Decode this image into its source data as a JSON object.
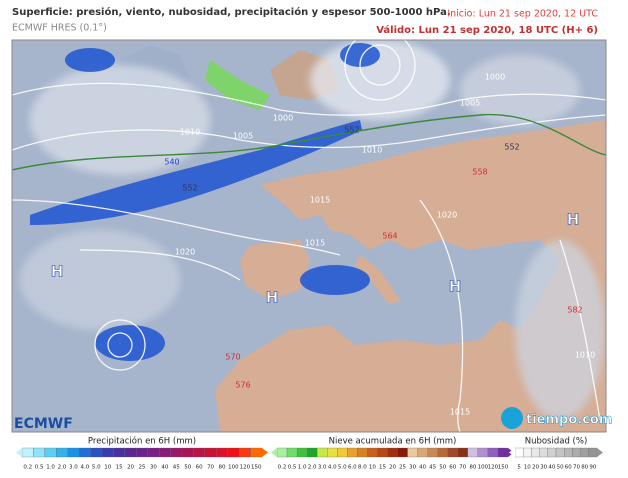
{
  "header": {
    "title": "Superficie: presión, viento, nubosidad, precipitación y espesor 500-1000 hPa.",
    "model": "ECMWF HRES (0.1°)",
    "start": "Inicio: Lun 21 sep 2020, 12 UTC",
    "valid": "Válido: Lun 21 sep 2020, 18 UTC (H+ 6)"
  },
  "map": {
    "labels": [
      "1000",
      "1005",
      "1010",
      "1005",
      "1000",
      "1010",
      "1015",
      "1020",
      "1020",
      "1015",
      "1015",
      "1010",
      "552",
      "552",
      "552",
      "540",
      "564",
      "558",
      "570",
      "576",
      "582",
      "H",
      "H",
      "H",
      "H"
    ]
  },
  "logos": {
    "left": "ECMWF",
    "right": "tiempo.com"
  },
  "legends": [
    {
      "title": "Precipitación en 6H (mm)",
      "ticks": [
        "0.2",
        "0.5",
        "1.0",
        "2.0",
        "3.0",
        "4.0",
        "5.0",
        "10",
        "15",
        "20",
        "25",
        "30",
        "40",
        "45",
        "50",
        "60",
        "70",
        "80",
        "100",
        "120",
        "150"
      ],
      "colors": [
        "#bff2ff",
        "#8fe3fb",
        "#5ccdf5",
        "#33b2ee",
        "#1e90e8",
        "#1e6fd9",
        "#2a52c4",
        "#3a3db0",
        "#4a2ea0",
        "#5a2795",
        "#6a2290",
        "#7a1e85",
        "#8a1a78",
        "#9b1868",
        "#ac1458",
        "#bd1248",
        "#ce1038",
        "#de0f28",
        "#ee0e18",
        "#f83a10",
        "#ff6a00"
      ]
    },
    {
      "title": "Nieve acumulada en 6H (mm)",
      "ticks": [
        "0.2",
        "0.5",
        "1.0",
        "2.0",
        "3.0",
        "4.0",
        "5.0",
        "6.0",
        "8.0",
        "10",
        "15",
        "20",
        "25",
        "30",
        "40",
        "45",
        "50",
        "60",
        "70",
        "80",
        "100",
        "120",
        "150"
      ],
      "colors": [
        "#a8f0a0",
        "#70dc6a",
        "#40c040",
        "#1fa62a",
        "#c8e84a",
        "#e8e040",
        "#f0c838",
        "#e8a030",
        "#d88028",
        "#c86020",
        "#b84818",
        "#a03010",
        "#881808",
        "#e8c8a0",
        "#d8a878",
        "#c88858",
        "#b86838",
        "#a04828",
        "#883018",
        "#d0c0e0",
        "#b090d0",
        "#9060c0",
        "#7030a0"
      ]
    },
    {
      "title": "Nubosidad (%)",
      "ticks": [
        "5",
        "10",
        "20",
        "30",
        "40",
        "50",
        "60",
        "70",
        "80",
        "90"
      ],
      "colors": [
        "#ffffff",
        "#f4f4f4",
        "#e8e8e8",
        "#dcdcdc",
        "#d0d0d0",
        "#c4c4c4",
        "#b8b8b8",
        "#acacac",
        "#a0a0a0",
        "#949494"
      ]
    }
  ]
}
